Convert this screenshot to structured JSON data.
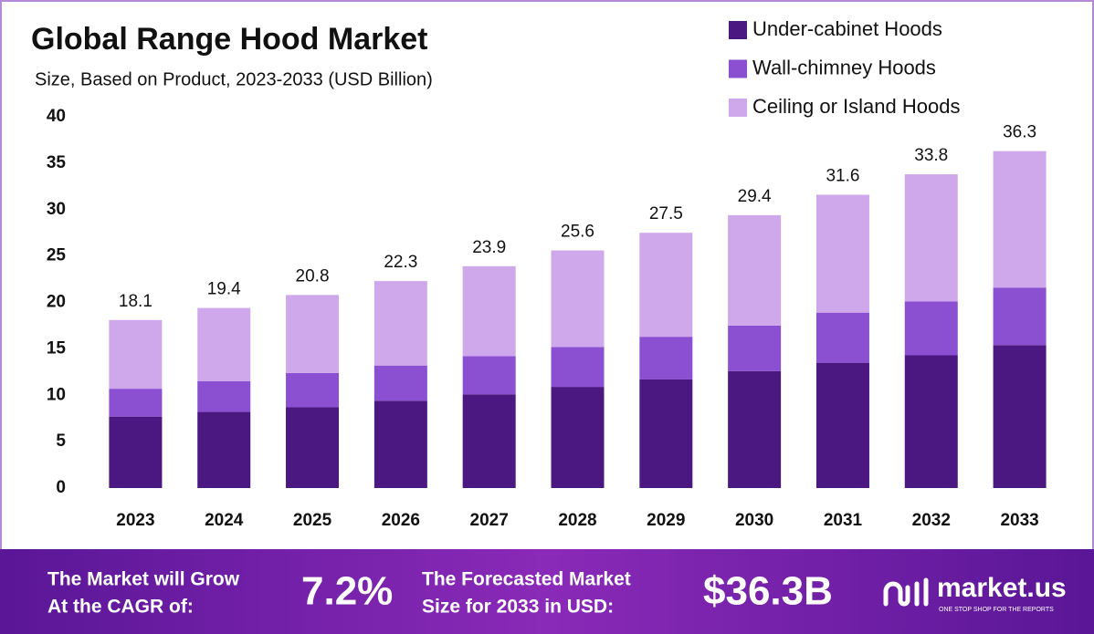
{
  "chart_data": {
    "type": "stacked-bar",
    "title": "Global Range Hood Market",
    "subtitle": "Size, Based on Product, 2023-2033 (USD Billion)",
    "categories": [
      "2023",
      "2024",
      "2025",
      "2026",
      "2027",
      "2028",
      "2029",
      "2030",
      "2031",
      "2032",
      "2033"
    ],
    "series": [
      {
        "name": "Under-cabinet Hoods",
        "color": "#4b1781",
        "values": [
          7.7,
          8.2,
          8.7,
          9.4,
          10.1,
          10.9,
          11.7,
          12.6,
          13.5,
          14.3,
          15.4
        ]
      },
      {
        "name": "Wall-chimney Hoods",
        "color": "#8b50d1",
        "values": [
          3.0,
          3.3,
          3.7,
          3.8,
          4.1,
          4.3,
          4.6,
          4.9,
          5.4,
          5.8,
          6.2
        ]
      },
      {
        "name": "Ceiling or Island Hoods",
        "color": "#cfa8eb",
        "values": [
          7.4,
          7.9,
          8.4,
          9.1,
          9.7,
          10.4,
          11.2,
          11.9,
          12.7,
          13.7,
          14.7
        ]
      }
    ],
    "totals": [
      18.1,
      19.4,
      20.8,
      22.3,
      23.9,
      25.6,
      27.5,
      29.4,
      31.6,
      33.8,
      36.3
    ],
    "ylim": [
      0,
      40
    ],
    "yticks": [
      0,
      5,
      10,
      15,
      20,
      25,
      30,
      35,
      40
    ],
    "grid": false,
    "legend": "top-right"
  },
  "footer": {
    "cagr_text": [
      "The Market will Grow",
      "At the CAGR of:"
    ],
    "cagr": "7.2%",
    "forecast_text": [
      "The Forecasted Market",
      "Size for 2033 in USD:"
    ],
    "forecast": "$36.3B",
    "brand": "market.us",
    "tagline": "ONE STOP SHOP FOR THE REPORTS"
  }
}
